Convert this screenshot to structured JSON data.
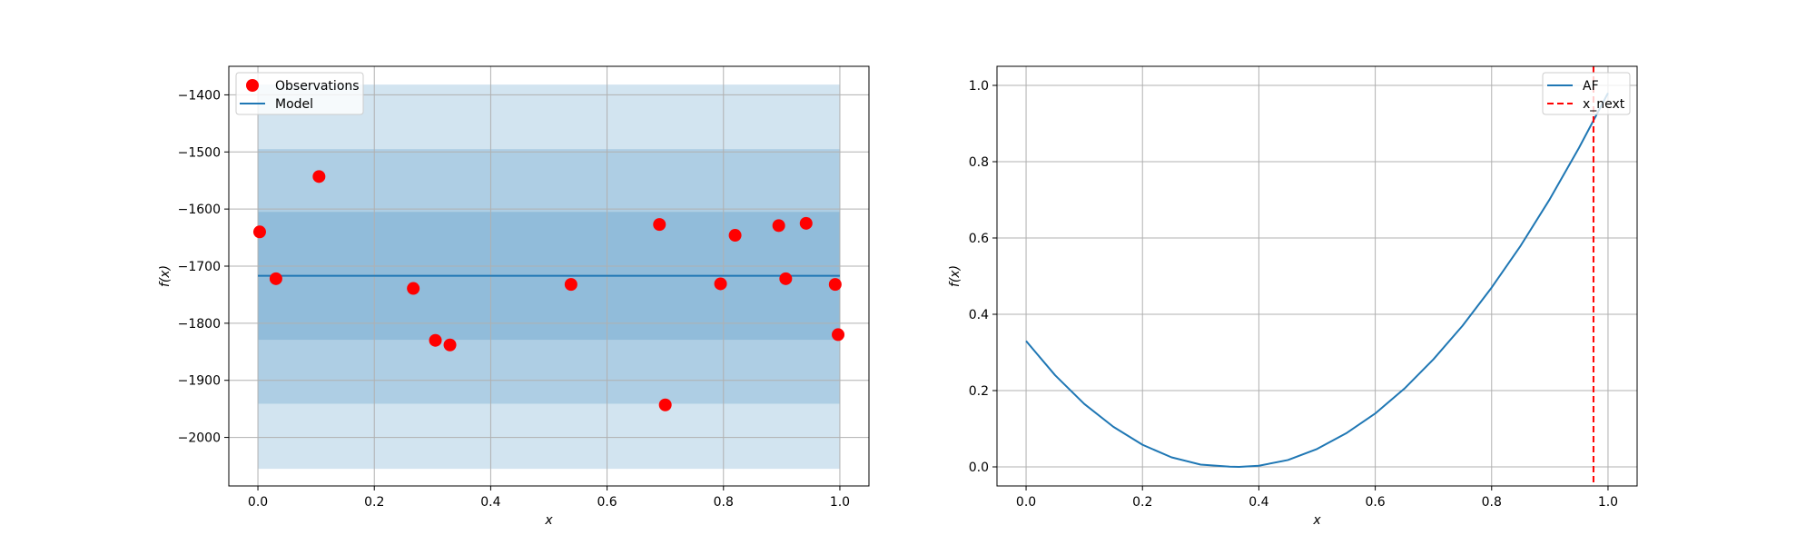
{
  "chart_data": [
    {
      "type": "scatter",
      "title": "",
      "xlabel": "x",
      "ylabel": "f(x)",
      "xlim": [
        -0.05,
        1.05
      ],
      "ylim": [
        -2085,
        -1350
      ],
      "xticks": [
        0.0,
        0.2,
        0.4,
        0.6,
        0.8,
        1.0
      ],
      "xtick_labels": [
        "0.0",
        "0.2",
        "0.4",
        "0.6",
        "0.8",
        "1.0"
      ],
      "yticks": [
        -1400,
        -1500,
        -1600,
        -1700,
        -1800,
        -1900,
        -2000
      ],
      "ytick_labels": [
        "−1400",
        "−1500",
        "−1600",
        "−1700",
        "−1800",
        "−1900",
        "−2000"
      ],
      "grid": true,
      "legend_position": "top-left",
      "legend": [
        "Observations",
        "Model"
      ],
      "colors": {
        "observations": "#ff0000",
        "model": "#1f77b4"
      },
      "observations": {
        "name": "Observations",
        "x": [
          0.003,
          0.031,
          0.105,
          0.267,
          0.305,
          0.33,
          0.538,
          0.69,
          0.7,
          0.795,
          0.82,
          0.895,
          0.907,
          0.942,
          0.992,
          0.997
        ],
        "y": [
          -1640,
          -1722,
          -1543,
          -1739,
          -1830,
          -1838,
          -1732,
          -1627,
          -1943,
          -1731,
          -1646,
          -1629,
          -1722,
          -1625,
          -1732,
          -1820
        ]
      },
      "model": {
        "name": "Model",
        "x": [
          0.0,
          1.0
        ],
        "mean": [
          -1717,
          -1717
        ],
        "bands": [
          {
            "lower": -2055,
            "upper": -1382
          },
          {
            "lower": -1941,
            "upper": -1495
          },
          {
            "lower": -1829,
            "upper": -1605
          }
        ]
      }
    },
    {
      "type": "line",
      "title": "",
      "xlabel": "x",
      "ylabel": "f(x)",
      "xlim": [
        -0.05,
        1.05
      ],
      "ylim": [
        -0.05,
        1.05
      ],
      "xticks": [
        0.0,
        0.2,
        0.4,
        0.6,
        0.8,
        1.0
      ],
      "xtick_labels": [
        "0.0",
        "0.2",
        "0.4",
        "0.6",
        "0.8",
        "1.0"
      ],
      "yticks": [
        0.0,
        0.2,
        0.4,
        0.6,
        0.8,
        1.0
      ],
      "ytick_labels": [
        "0.0",
        "0.2",
        "0.4",
        "0.6",
        "0.8",
        "1.0"
      ],
      "grid": true,
      "legend_position": "top-right",
      "legend": [
        "AF",
        "x_next"
      ],
      "colors": {
        "af": "#1f77b4",
        "x_next": "#ff0000"
      },
      "series": [
        {
          "name": "AF",
          "x": [
            0.0,
            0.05,
            0.1,
            0.15,
            0.2,
            0.25,
            0.3,
            0.35,
            0.366,
            0.4,
            0.45,
            0.5,
            0.55,
            0.6,
            0.65,
            0.7,
            0.75,
            0.8,
            0.85,
            0.9,
            0.95,
            1.0
          ],
          "y": [
            0.33,
            0.24,
            0.165,
            0.105,
            0.058,
            0.025,
            0.006,
            0.0005,
            0.0,
            0.003,
            0.018,
            0.047,
            0.088,
            0.14,
            0.205,
            0.282,
            0.37,
            0.47,
            0.58,
            0.702,
            0.836,
            0.98
          ]
        }
      ],
      "x_next": 0.975
    }
  ]
}
